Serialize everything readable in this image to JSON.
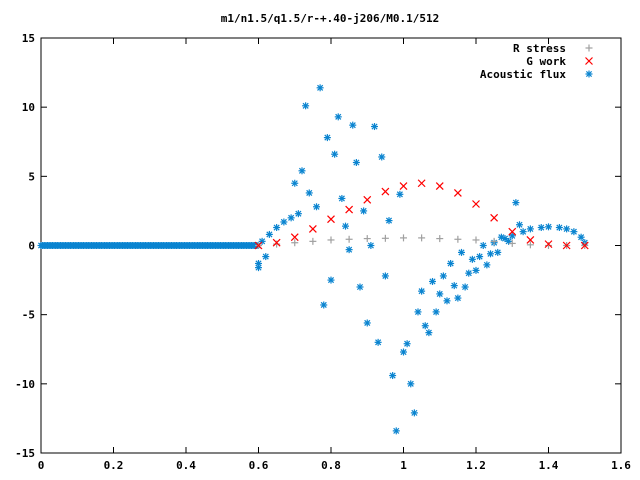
{
  "chart_data": {
    "type": "scatter",
    "title": "m1/n1.5/q1.5/r-+.40-j206/M0.1/512",
    "xlabel": "",
    "ylabel": "",
    "xlim": [
      0,
      1.6
    ],
    "ylim": [
      -15,
      15
    ],
    "x_ticks": [
      "0",
      "0.2",
      "0.4",
      "0.6",
      "0.8",
      "1",
      "1.2",
      "1.4",
      "1.6"
    ],
    "y_ticks": [
      "15",
      "10",
      "5",
      "0",
      "-5",
      "-10",
      "-15"
    ],
    "grid": false,
    "legend_position": "top-right",
    "series": [
      {
        "name": "R stress",
        "marker": "plus",
        "color": "#a0a0a0",
        "points": [
          [
            0.6,
            0.0
          ],
          [
            0.65,
            0.1
          ],
          [
            0.7,
            0.2
          ],
          [
            0.75,
            0.3
          ],
          [
            0.8,
            0.4
          ],
          [
            0.85,
            0.45
          ],
          [
            0.9,
            0.5
          ],
          [
            0.95,
            0.52
          ],
          [
            1.0,
            0.55
          ],
          [
            1.05,
            0.55
          ],
          [
            1.1,
            0.5
          ],
          [
            1.15,
            0.45
          ],
          [
            1.2,
            0.4
          ],
          [
            1.25,
            0.3
          ],
          [
            1.3,
            0.15
          ],
          [
            1.35,
            0.05
          ],
          [
            1.4,
            0.0
          ],
          [
            1.45,
            0.0
          ],
          [
            1.5,
            0.0
          ]
        ]
      },
      {
        "name": "G work",
        "marker": "cross",
        "color": "#ff0000",
        "points": [
          [
            0.6,
            0.0
          ],
          [
            0.65,
            0.2
          ],
          [
            0.7,
            0.6
          ],
          [
            0.75,
            1.2
          ],
          [
            0.8,
            1.9
          ],
          [
            0.85,
            2.6
          ],
          [
            0.9,
            3.3
          ],
          [
            0.95,
            3.9
          ],
          [
            1.0,
            4.3
          ],
          [
            1.05,
            4.5
          ],
          [
            1.1,
            4.3
          ],
          [
            1.15,
            3.8
          ],
          [
            1.2,
            3.0
          ],
          [
            1.25,
            2.0
          ],
          [
            1.3,
            1.0
          ],
          [
            1.35,
            0.4
          ],
          [
            1.4,
            0.1
          ],
          [
            1.45,
            0.0
          ],
          [
            1.5,
            0.0
          ]
        ]
      },
      {
        "name": "Acoustic flux",
        "marker": "star",
        "color": "#0a84d0",
        "points": [
          [
            0.61,
            0.3
          ],
          [
            0.63,
            0.8
          ],
          [
            0.65,
            1.3
          ],
          [
            0.67,
            1.7
          ],
          [
            0.69,
            2.0
          ],
          [
            0.71,
            2.3
          ],
          [
            0.6,
            -1.6
          ],
          [
            0.6,
            -1.3
          ],
          [
            0.62,
            -0.8
          ],
          [
            0.7,
            4.5
          ],
          [
            0.72,
            5.4
          ],
          [
            0.73,
            10.1
          ],
          [
            0.77,
            11.4
          ],
          [
            0.74,
            3.8
          ],
          [
            0.76,
            2.8
          ],
          [
            0.78,
            -4.3
          ],
          [
            0.79,
            7.8
          ],
          [
            0.8,
            -2.5
          ],
          [
            0.81,
            6.6
          ],
          [
            0.82,
            9.3
          ],
          [
            0.83,
            3.4
          ],
          [
            0.84,
            1.4
          ],
          [
            0.85,
            -0.3
          ],
          [
            0.86,
            8.7
          ],
          [
            0.87,
            6.0
          ],
          [
            0.88,
            -3.0
          ],
          [
            0.89,
            2.5
          ],
          [
            0.9,
            -5.6
          ],
          [
            0.91,
            0.0
          ],
          [
            0.92,
            8.6
          ],
          [
            0.93,
            -7.0
          ],
          [
            0.94,
            6.4
          ],
          [
            0.95,
            -2.2
          ],
          [
            0.96,
            1.8
          ],
          [
            0.97,
            -9.4
          ],
          [
            0.98,
            -13.4
          ],
          [
            0.99,
            3.7
          ],
          [
            1.0,
            -7.7
          ],
          [
            1.01,
            -7.1
          ],
          [
            1.02,
            -10.0
          ],
          [
            1.03,
            -12.1
          ],
          [
            1.04,
            -4.8
          ],
          [
            1.05,
            -3.3
          ],
          [
            1.06,
            -5.8
          ],
          [
            1.07,
            -6.3
          ],
          [
            1.08,
            -2.6
          ],
          [
            1.09,
            -4.8
          ],
          [
            1.1,
            -3.5
          ],
          [
            1.11,
            -2.2
          ],
          [
            1.12,
            -4.0
          ],
          [
            1.13,
            -1.3
          ],
          [
            1.14,
            -2.9
          ],
          [
            1.15,
            -3.8
          ],
          [
            1.16,
            -0.5
          ],
          [
            1.17,
            -3.0
          ],
          [
            1.18,
            -2.0
          ],
          [
            1.19,
            -1.0
          ],
          [
            1.2,
            -1.8
          ],
          [
            1.21,
            -0.8
          ],
          [
            1.22,
            0.0
          ],
          [
            1.23,
            -1.4
          ],
          [
            1.24,
            -0.6
          ],
          [
            1.25,
            0.2
          ],
          [
            1.26,
            -0.5
          ],
          [
            1.27,
            0.6
          ],
          [
            1.28,
            0.5
          ],
          [
            1.29,
            0.3
          ],
          [
            1.3,
            0.7
          ],
          [
            1.31,
            3.1
          ],
          [
            1.32,
            1.5
          ],
          [
            1.33,
            1.0
          ],
          [
            1.35,
            1.2
          ],
          [
            1.38,
            1.3
          ],
          [
            1.4,
            1.35
          ],
          [
            1.43,
            1.3
          ],
          [
            1.45,
            1.2
          ],
          [
            1.47,
            1.0
          ],
          [
            1.49,
            0.6
          ],
          [
            1.5,
            0.2
          ]
        ]
      }
    ],
    "baseline": {
      "series": "Acoustic flux",
      "x_from": 0.0,
      "x_to": 0.6,
      "y": 0.0
    }
  }
}
